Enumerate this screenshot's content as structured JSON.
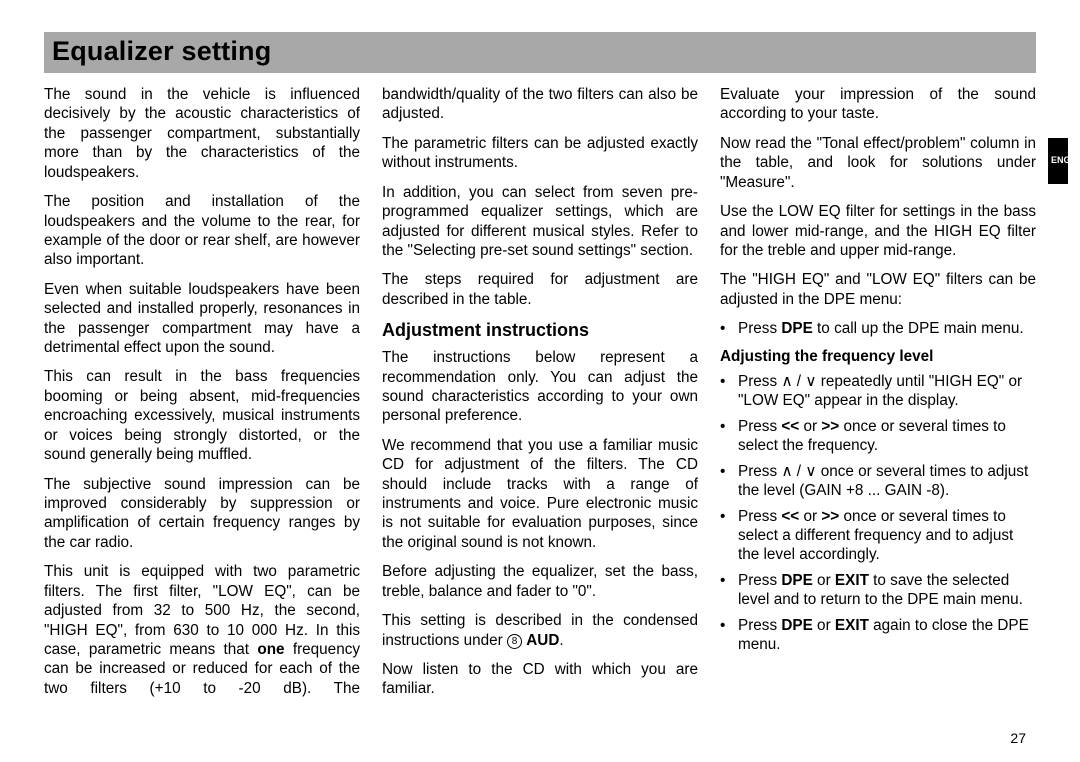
{
  "title": "Equalizer setting",
  "lang_tab": "ENGLISH",
  "page_number": "27",
  "col": {
    "p1": "The sound in the vehicle is influenced decisively by the acoustic characteristics of the passenger compartment, substantially more than by the characteristics of the loudspeakers.",
    "p2": "The position and installation of the loudspeakers and the volume to the rear, for example of the door or rear shelf, are however also important.",
    "p3": "Even when suitable loudspeakers have been selected and installed properly, resonances in the passenger compartment may have a detrimental effect upon the sound.",
    "p4": "This can result in the bass frequencies booming or being absent, mid-frequencies encroaching excessively, musical instruments or voices being strongly distorted, or the sound generally being muffled.",
    "p5": "The subjective sound impression can be improved considerably by suppression or amplification of certain frequency ranges by the car radio.",
    "p6a": "This unit is equipped with two parametric filters. The first filter, \"LOW EQ\", can be adjusted from 32 to 500 Hz, the second, \"HIGH EQ\", from 630 to 10 000 Hz. In this case, parametric means that ",
    "p6b": "one",
    "p6c": " frequency can be increased or reduced for each of the two filters (+10 to -20 dB). The bandwidth/quality of the two filters can also be adjusted.",
    "p7": "The parametric filters can be adjusted exactly without instruments.",
    "p8": "In addition, you can select from seven pre-programmed equalizer settings, which are adjusted for different musical styles. Refer to the \"Selecting pre-set sound settings\" section.",
    "p9": "The steps required for adjustment are described in the table.",
    "h_adj": "Adjustment instructions",
    "p10": "The instructions below represent a recommendation only. You can adjust the sound characteristics according to your own personal preference.",
    "p11": "We recommend that you use a familiar music CD for adjustment of the filters. The CD should include tracks with a range of instruments and voice. Pure electronic music is not suitable for evaluation purposes, since the original sound is not known.",
    "p12": "Before adjusting the equalizer, set the bass, treble, balance and fader to \"0\".",
    "p13a": "This setting is described in the condensed instructions under ",
    "p13_circ": "8",
    "p13b": " AUD",
    "p13c": ".",
    "p14": "Now listen to the CD with which you are familiar.",
    "p15": "Evaluate your impression of the sound according to your taste.",
    "p16": "Now read the \"Tonal effect/problem\" column in the table, and look for solutions under \"Measure\".",
    "p17": "Use the LOW EQ filter for settings in the bass and lower mid-range, and the HIGH EQ filter for the treble and upper mid-range.",
    "p18": "The \"HIGH EQ\" and \"LOW EQ\" filters can be adjusted in the DPE menu:",
    "b1a": "Press ",
    "b1b": "DPE",
    "b1c": " to call up the DPE main menu.",
    "h_freq": "Adjusting the frequency level",
    "b2": "Press  ∧ / ∨ repeatedly until \"HIGH EQ\" or \"LOW EQ\" appear in the display.",
    "b3a": "Press ",
    "b3b": "<<",
    "b3c": " or ",
    "b3d": ">>",
    "b3e": " once or several times to select the frequency.",
    "b4": "Press  ∧ / ∨ once or several times to adjust the level (GAIN +8 ... GAIN -8).",
    "b5a": "Press ",
    "b5b": "<<",
    "b5c": " or ",
    "b5d": ">>",
    "b5e": " once or several times to select a different frequency and to adjust the level accordingly.",
    "b6a": "Press ",
    "b6b": "DPE",
    "b6c": " or ",
    "b6d": "EXIT",
    "b6e": " to save the selected level and to return to the DPE main menu.",
    "b7a": "Press ",
    "b7b": "DPE",
    "b7c": " or ",
    "b7d": "EXIT",
    "b7e": " again to close the DPE menu."
  }
}
